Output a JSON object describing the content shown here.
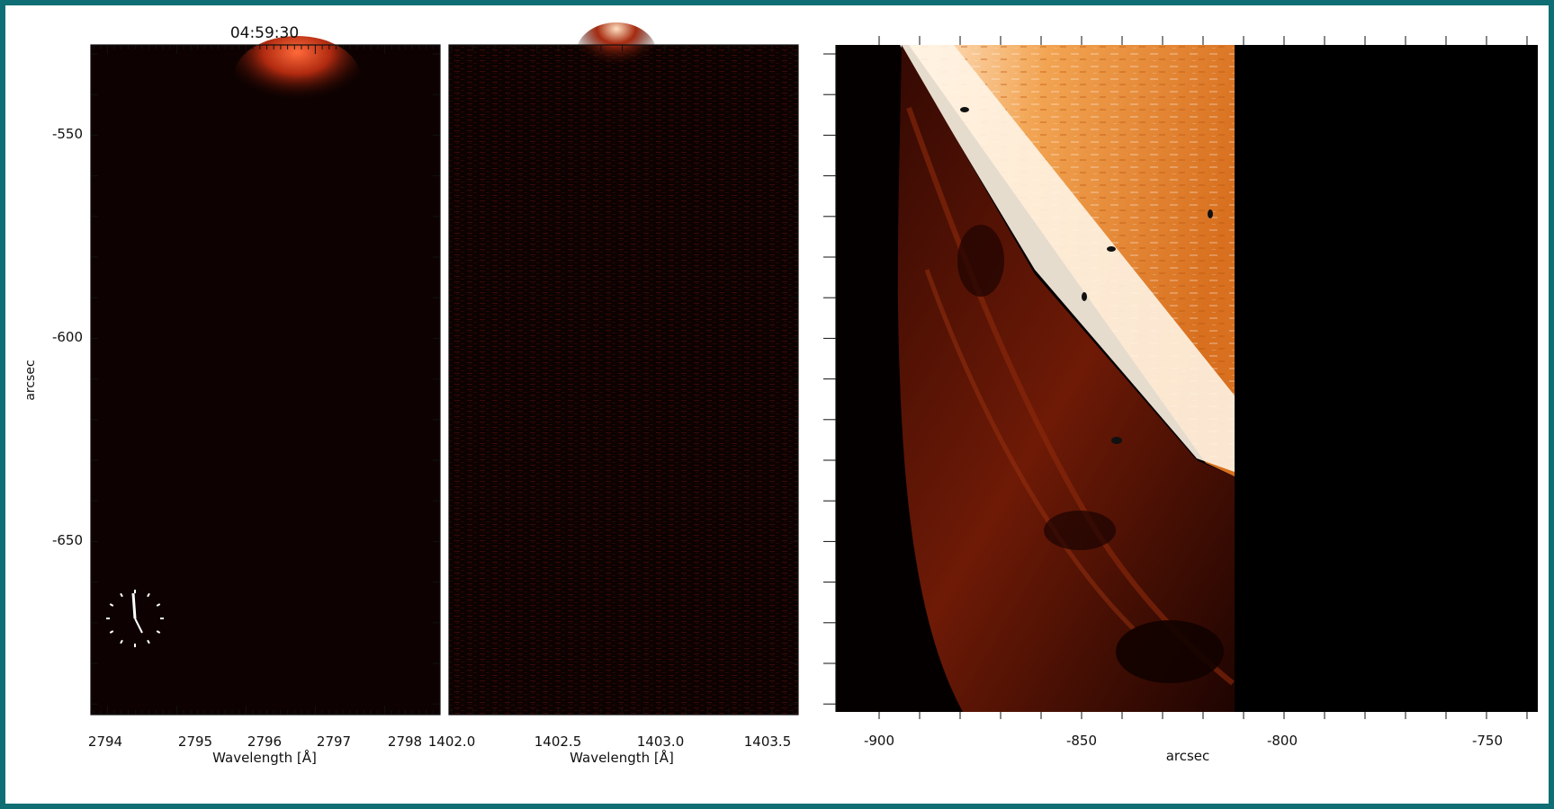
{
  "timestamp": "04:59:30",
  "panels": {
    "mg": {
      "xlabel": "Wavelength [Å]",
      "ylabel": "arcsec",
      "xticks": [
        "2794",
        "2795",
        "2796",
        "2797",
        "2798"
      ],
      "yticks": [
        "-550",
        "-600",
        "-650"
      ]
    },
    "si": {
      "xlabel": "Wavelength [Å]",
      "xticks": [
        "1402.0",
        "1402.5",
        "1403.0",
        "1403.5"
      ]
    },
    "sji": {
      "xlabel": "arcsec",
      "xticks": [
        "-900",
        "-850",
        "-800",
        "-750"
      ]
    }
  },
  "colors": {
    "frame_border": "#0f6e74",
    "background": "#ffffff",
    "limb_bright": "#fff6e6",
    "disk_orange": "#e9862b",
    "prominence": "#7a1c08",
    "dark": "#060000"
  },
  "icons": [
    "clock-icon"
  ]
}
